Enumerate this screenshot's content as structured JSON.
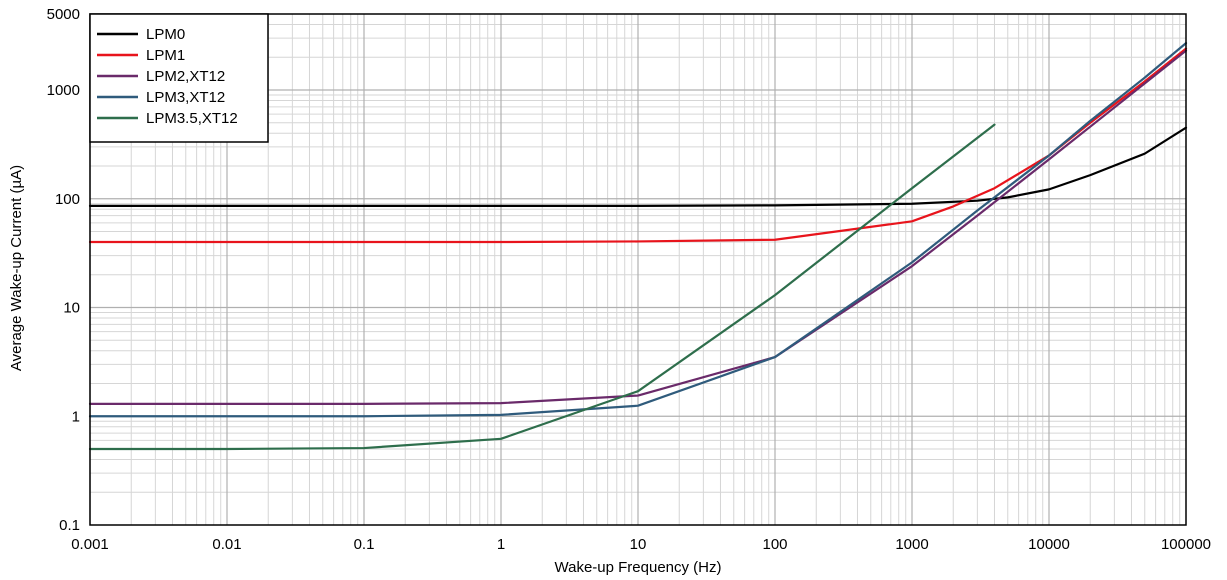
{
  "chart_data": {
    "type": "line",
    "xlabel": "Wake-up Frequency (Hz)",
    "ylabel": "Average Wake-up Current (µA)",
    "xscale": "log",
    "yscale": "log",
    "xlim": [
      0.001,
      100000
    ],
    "ylim": [
      0.1,
      5000
    ],
    "grid": true,
    "legend_position": "top-left",
    "x_ticks": [
      "0.001",
      "0.01",
      "0.1",
      "1",
      "10",
      "100",
      "1000",
      "10000",
      "100000"
    ],
    "y_ticks": [
      "0.1",
      "1",
      "10",
      "100",
      "1000",
      "5000"
    ],
    "series": [
      {
        "name": "LPM0",
        "color": "#000000",
        "points": [
          [
            0.001,
            86
          ],
          [
            0.01,
            86
          ],
          [
            0.1,
            86
          ],
          [
            1,
            86
          ],
          [
            10,
            86
          ],
          [
            100,
            87
          ],
          [
            1000,
            90
          ],
          [
            3000,
            96
          ],
          [
            5000,
            103
          ],
          [
            10000,
            122
          ],
          [
            20000,
            165
          ],
          [
            50000,
            260
          ],
          [
            100000,
            450
          ]
        ]
      },
      {
        "name": "LPM1",
        "color": "#e8141c",
        "points": [
          [
            0.001,
            40
          ],
          [
            0.01,
            40
          ],
          [
            0.1,
            40
          ],
          [
            1,
            40
          ],
          [
            10,
            40.5
          ],
          [
            100,
            42
          ],
          [
            1000,
            62
          ],
          [
            2000,
            85
          ],
          [
            4000,
            125
          ],
          [
            10000,
            250
          ],
          [
            20000,
            500
          ],
          [
            50000,
            1200
          ],
          [
            100000,
            2400
          ]
        ]
      },
      {
        "name": "LPM2,XT12",
        "color": "#6a2a6a",
        "points": [
          [
            0.001,
            1.3
          ],
          [
            0.01,
            1.3
          ],
          [
            0.1,
            1.3
          ],
          [
            1,
            1.32
          ],
          [
            10,
            1.55
          ],
          [
            100,
            3.5
          ],
          [
            1000,
            24
          ],
          [
            3000,
            70
          ],
          [
            10000,
            230
          ],
          [
            20000,
            460
          ],
          [
            50000,
            1150
          ],
          [
            100000,
            2300
          ]
        ]
      },
      {
        "name": "LPM3,XT12",
        "color": "#2f5b7c",
        "points": [
          [
            0.001,
            1.0
          ],
          [
            0.01,
            1.0
          ],
          [
            0.1,
            1.0
          ],
          [
            1,
            1.03
          ],
          [
            10,
            1.25
          ],
          [
            100,
            3.5
          ],
          [
            1000,
            26
          ],
          [
            3000,
            78
          ],
          [
            10000,
            250
          ],
          [
            20000,
            520
          ],
          [
            50000,
            1300
          ],
          [
            100000,
            2700
          ]
        ]
      },
      {
        "name": "LPM3.5,XT12",
        "color": "#2e6e4c",
        "points": [
          [
            0.001,
            0.5
          ],
          [
            0.01,
            0.5
          ],
          [
            0.1,
            0.51
          ],
          [
            1,
            0.62
          ],
          [
            10,
            1.7
          ],
          [
            100,
            13
          ],
          [
            1000,
            125
          ],
          [
            4000,
            480
          ]
        ]
      }
    ]
  }
}
